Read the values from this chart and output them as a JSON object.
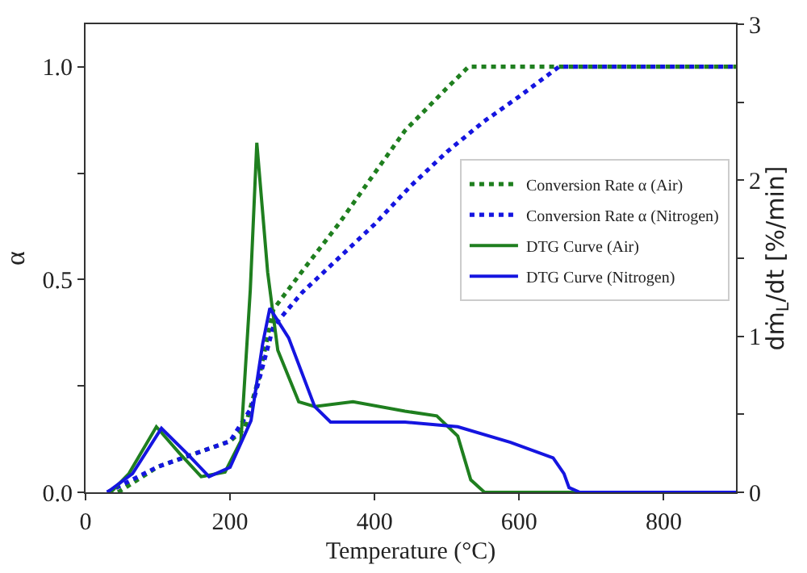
{
  "chart_data": {
    "type": "line",
    "xlabel": "Temperature (°C)",
    "ylabel": "α",
    "y2label": "dṁ$_{L}$/dt [%/min]",
    "xlim": [
      0,
      900
    ],
    "xticks": [
      0,
      200,
      400,
      600,
      800
    ],
    "ylim": [
      0,
      1.1
    ],
    "yticks": [
      {
        "value": 0,
        "label": "0.0"
      },
      {
        "value": 0.25,
        "label": null
      },
      {
        "value": 0.5,
        "label": "0.5"
      },
      {
        "value": 0.75,
        "label": null
      },
      {
        "value": 1.0,
        "label": "1.0"
      }
    ],
    "y2lim": [
      0,
      3
    ],
    "y2ticks": [
      0,
      {
        "value": 0.5,
        "label": null
      },
      1,
      {
        "value": 1.5,
        "label": null
      },
      2,
      {
        "value": 2.5,
        "label": null
      },
      3
    ],
    "legend": "right",
    "marker": "none",
    "series": [
      {
        "name": "Conversion Rate α (Air)",
        "color": "#1f7f1f",
        "line_style": "dotted",
        "x": [
          45,
          100,
          200,
          220,
          240,
          260,
          300,
          350,
          400,
          442,
          500,
          530,
          900
        ],
        "values": [
          0,
          0.06,
          0.12,
          0.15,
          0.27,
          0.43,
          0.52,
          0.63,
          0.75,
          0.85,
          0.95,
          1.0,
          1.0
        ]
      },
      {
        "name": "Conversion Rate α (Nitrogen)",
        "color": "#1515e0",
        "line_style": "dotted",
        "x": [
          30,
          100,
          200,
          230,
          260,
          300,
          350,
          400,
          450,
          500,
          550,
          600,
          655,
          900
        ],
        "values": [
          0,
          0.06,
          0.12,
          0.2,
          0.39,
          0.47,
          0.55,
          0.63,
          0.72,
          0.8,
          0.87,
          0.93,
          1.0,
          1.0
        ]
      },
      {
        "name": "DTG Curve (Air)",
        "color": "#1f7f1f",
        "line_style": "solid",
        "axis": "y2",
        "x": [
          35,
          60,
          98,
          130,
          160,
          193,
          215,
          228,
          237,
          252,
          266,
          295,
          317,
          370,
          442,
          486,
          515,
          533,
          552,
          900
        ],
        "values": [
          0,
          0.12,
          0.42,
          0.25,
          0.1,
          0.13,
          0.33,
          1.3,
          2.24,
          1.41,
          0.91,
          0.58,
          0.55,
          0.58,
          0.52,
          0.49,
          0.36,
          0.08,
          0,
          0
        ]
      },
      {
        "name": "DTG Curve (Nitrogen)",
        "color": "#1515e0",
        "line_style": "solid",
        "axis": "y2",
        "x": [
          30,
          65,
          105,
          140,
          171,
          200,
          229,
          245,
          255,
          281,
          317,
          339,
          442,
          515,
          588,
          647,
          662,
          669,
          684,
          900
        ],
        "values": [
          0,
          0.12,
          0.41,
          0.25,
          0.1,
          0.16,
          0.46,
          0.95,
          1.18,
          0.99,
          0.55,
          0.45,
          0.45,
          0.42,
          0.32,
          0.22,
          0.12,
          0.03,
          0,
          0
        ]
      }
    ]
  }
}
